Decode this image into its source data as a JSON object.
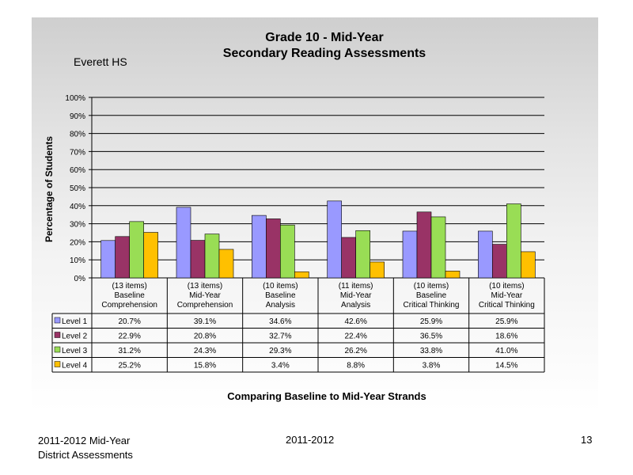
{
  "chart_data": {
    "type": "bar",
    "title": [
      "Grade 10 - Mid-Year",
      "Secondary Reading Assessments"
    ],
    "subtitle": "Everett HS",
    "ylabel": "Percentage of Students",
    "xlabel": "Comparing Baseline to Mid-Year Strands",
    "ylim": [
      0,
      100
    ],
    "y_ticks": [
      "0%",
      "10%",
      "20%",
      "30%",
      "40%",
      "50%",
      "60%",
      "70%",
      "80%",
      "90%",
      "100%"
    ],
    "grid": true,
    "legend": "data-table",
    "categories": [
      [
        "(13 items)",
        "Baseline",
        "Comprehension"
      ],
      [
        "(13 items)",
        "Mid-Year",
        "Comprehension"
      ],
      [
        "(10 items)",
        "Baseline",
        "Analysis"
      ],
      [
        "(11 items)",
        "Mid-Year",
        "Analysis"
      ],
      [
        "(10 items)",
        "Baseline",
        "Critical Thinking"
      ],
      [
        "(10 items)",
        "Mid-Year",
        "Critical Thinking"
      ]
    ],
    "series": [
      {
        "name": "Level 1",
        "color": "#9999ff",
        "values": [
          20.7,
          39.1,
          34.6,
          42.6,
          25.9,
          25.9
        ],
        "labels": [
          "20.7%",
          "39.1%",
          "34.6%",
          "42.6%",
          "25.9%",
          "25.9%"
        ]
      },
      {
        "name": "Level 2",
        "color": "#993366",
        "values": [
          22.9,
          20.8,
          32.7,
          22.4,
          36.5,
          18.6
        ],
        "labels": [
          "22.9%",
          "20.8%",
          "32.7%",
          "22.4%",
          "36.5%",
          "18.6%"
        ]
      },
      {
        "name": "Level 3",
        "color": "#99dd55",
        "values": [
          31.2,
          24.3,
          29.3,
          26.2,
          33.8,
          41.0
        ],
        "labels": [
          "31.2%",
          "24.3%",
          "29.3%",
          "26.2%",
          "33.8%",
          "41.0%"
        ]
      },
      {
        "name": "Level 4",
        "color": "#ffc000",
        "values": [
          25.2,
          15.8,
          3.4,
          8.8,
          3.8,
          14.5
        ],
        "labels": [
          "25.2%",
          "15.8%",
          "3.4%",
          "8.8%",
          "3.8%",
          "14.5%"
        ]
      }
    ]
  },
  "footer": {
    "left_line1": "2011-2012  Mid-Year",
    "left_line2": "District Assessments",
    "center": "2011-2012",
    "page": "13"
  }
}
